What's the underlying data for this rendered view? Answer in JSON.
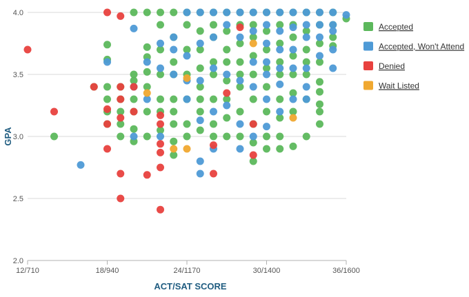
{
  "chart_data": {
    "type": "scatter",
    "xlabel": "ACT/SAT SCORE",
    "ylabel": "GPA",
    "xlim": [
      12,
      36
    ],
    "ylim": [
      2.0,
      4.0
    ],
    "x_ticks": [
      12,
      18,
      24,
      30,
      36
    ],
    "x_tick_labels": [
      "12/710",
      "18/940",
      "24/1170",
      "30/1400",
      "36/1600"
    ],
    "y_ticks": [
      2.0,
      2.5,
      3.0,
      3.5,
      4.0
    ],
    "y_tick_labels": [
      "2.0",
      "2.5",
      "3.0",
      "3.5",
      "4.0"
    ],
    "grid": "horizontal",
    "legend_position": "right",
    "series": [
      {
        "name": "Accepted",
        "color": "#5cb85c",
        "points": [
          [
            14,
            3.0
          ],
          [
            17,
            3.4
          ],
          [
            18,
            3.74
          ],
          [
            18,
            3.62
          ],
          [
            18,
            3.4
          ],
          [
            18,
            3.3
          ],
          [
            18,
            3.2
          ],
          [
            18,
            3.1
          ],
          [
            19,
            3.4
          ],
          [
            19,
            3.3
          ],
          [
            19,
            3.2
          ],
          [
            19,
            3.1
          ],
          [
            19,
            3.0
          ],
          [
            20,
            3.5
          ],
          [
            20,
            3.45
          ],
          [
            20,
            3.3
          ],
          [
            20,
            3.2
          ],
          [
            20,
            3.06
          ],
          [
            20,
            2.96
          ],
          [
            20,
            4.0
          ],
          [
            21,
            4.0
          ],
          [
            21,
            3.72
          ],
          [
            21,
            3.64
          ],
          [
            21,
            3.52
          ],
          [
            21,
            3.4
          ],
          [
            21,
            3.2
          ],
          [
            21,
            3.0
          ],
          [
            22,
            4.0
          ],
          [
            22,
            3.9
          ],
          [
            22,
            3.7
          ],
          [
            22,
            3.5
          ],
          [
            22,
            3.3
          ],
          [
            22,
            3.2
          ],
          [
            22,
            3.05
          ],
          [
            23,
            4.0
          ],
          [
            23,
            3.8
          ],
          [
            23,
            3.6
          ],
          [
            23,
            3.5
          ],
          [
            23,
            3.3
          ],
          [
            23,
            3.2
          ],
          [
            23,
            3.1
          ],
          [
            23,
            2.96
          ],
          [
            23,
            2.85
          ],
          [
            24,
            4.0
          ],
          [
            24,
            3.9
          ],
          [
            24,
            3.7
          ],
          [
            24,
            3.5
          ],
          [
            24,
            3.3
          ],
          [
            24,
            3.1
          ],
          [
            24,
            3.0
          ],
          [
            25,
            4.0
          ],
          [
            25,
            3.85
          ],
          [
            25,
            3.7
          ],
          [
            25,
            3.55
          ],
          [
            25,
            3.4
          ],
          [
            25,
            3.3
          ],
          [
            25,
            3.2
          ],
          [
            25,
            3.05
          ],
          [
            26,
            4.0
          ],
          [
            26,
            3.9
          ],
          [
            26,
            3.8
          ],
          [
            26,
            3.6
          ],
          [
            26,
            3.5
          ],
          [
            26,
            3.3
          ],
          [
            26,
            3.1
          ],
          [
            26,
            3.0
          ],
          [
            27,
            4.0
          ],
          [
            27,
            3.85
          ],
          [
            27,
            3.7
          ],
          [
            27,
            3.6
          ],
          [
            27,
            3.45
          ],
          [
            27,
            3.3
          ],
          [
            27,
            3.15
          ],
          [
            27,
            3.0
          ],
          [
            28,
            4.0
          ],
          [
            28,
            3.9
          ],
          [
            28,
            3.75
          ],
          [
            28,
            3.6
          ],
          [
            28,
            3.5
          ],
          [
            28,
            3.4
          ],
          [
            28,
            3.2
          ],
          [
            28,
            3.0
          ],
          [
            29,
            4.0
          ],
          [
            29,
            3.9
          ],
          [
            29,
            3.8
          ],
          [
            29,
            3.65
          ],
          [
            29,
            3.5
          ],
          [
            29,
            3.3
          ],
          [
            29,
            3.1
          ],
          [
            29,
            2.95
          ],
          [
            29,
            2.8
          ],
          [
            30,
            4.0
          ],
          [
            30,
            3.85
          ],
          [
            30,
            3.7
          ],
          [
            30,
            3.55
          ],
          [
            30,
            3.4
          ],
          [
            30,
            3.2
          ],
          [
            30,
            3.0
          ],
          [
            30,
            2.9
          ],
          [
            31,
            4.0
          ],
          [
            31,
            3.9
          ],
          [
            31,
            3.75
          ],
          [
            31,
            3.6
          ],
          [
            31,
            3.5
          ],
          [
            31,
            3.3
          ],
          [
            31,
            3.15
          ],
          [
            31,
            3.0
          ],
          [
            31,
            2.9
          ],
          [
            32,
            4.0
          ],
          [
            32,
            3.9
          ],
          [
            32,
            3.8
          ],
          [
            32,
            3.65
          ],
          [
            32,
            3.5
          ],
          [
            32,
            3.35
          ],
          [
            32,
            3.2
          ],
          [
            32,
            2.92
          ],
          [
            33,
            4.0
          ],
          [
            33,
            3.85
          ],
          [
            33,
            3.7
          ],
          [
            33,
            3.6
          ],
          [
            33,
            3.5
          ],
          [
            33,
            3.3
          ],
          [
            33,
            3.0
          ],
          [
            34,
            4.0
          ],
          [
            34,
            3.9
          ],
          [
            34,
            3.75
          ],
          [
            34,
            3.6
          ],
          [
            34,
            3.44
          ],
          [
            34,
            3.36
          ],
          [
            34,
            3.26
          ],
          [
            34,
            3.2
          ],
          [
            34,
            3.1
          ],
          [
            35,
            4.0
          ],
          [
            35,
            3.9
          ],
          [
            35,
            3.8
          ],
          [
            35,
            3.73
          ],
          [
            36,
            3.95
          ]
        ]
      },
      {
        "name": "Accepted, Won't Attend",
        "color": "#4e9ad6",
        "points": [
          [
            16,
            2.77
          ],
          [
            18,
            3.6
          ],
          [
            20,
            3.87
          ],
          [
            20,
            3.4
          ],
          [
            20,
            3.0
          ],
          [
            21,
            3.6
          ],
          [
            21,
            3.3
          ],
          [
            22,
            3.75
          ],
          [
            22,
            3.55
          ],
          [
            22,
            3.0
          ],
          [
            23,
            3.8
          ],
          [
            23,
            3.7
          ],
          [
            23,
            3.5
          ],
          [
            24,
            4.0
          ],
          [
            24,
            3.65
          ],
          [
            24,
            3.45
          ],
          [
            24,
            3.3
          ],
          [
            25,
            4.0
          ],
          [
            25,
            3.75
          ],
          [
            25,
            3.45
          ],
          [
            25,
            3.13
          ],
          [
            25,
            2.8
          ],
          [
            25,
            2.7
          ],
          [
            26,
            4.0
          ],
          [
            26,
            3.8
          ],
          [
            26,
            3.55
          ],
          [
            26,
            3.2
          ],
          [
            26,
            2.9
          ],
          [
            27,
            4.0
          ],
          [
            27,
            3.9
          ],
          [
            27,
            3.5
          ],
          [
            27,
            3.25
          ],
          [
            28,
            4.0
          ],
          [
            28,
            3.8
          ],
          [
            28,
            3.45
          ],
          [
            28,
            3.1
          ],
          [
            28,
            2.9
          ],
          [
            29,
            4.0
          ],
          [
            29,
            3.85
          ],
          [
            29,
            3.6
          ],
          [
            29,
            3.4
          ],
          [
            29,
            3.0
          ],
          [
            30,
            4.0
          ],
          [
            30,
            3.9
          ],
          [
            30,
            3.75
          ],
          [
            30,
            3.6
          ],
          [
            30,
            3.5
          ],
          [
            30,
            3.3
          ],
          [
            30,
            3.08
          ],
          [
            31,
            4.0
          ],
          [
            31,
            3.85
          ],
          [
            31,
            3.7
          ],
          [
            31,
            3.55
          ],
          [
            31,
            3.42
          ],
          [
            31,
            3.2
          ],
          [
            32,
            4.0
          ],
          [
            32,
            3.88
          ],
          [
            32,
            3.7
          ],
          [
            32,
            3.55
          ],
          [
            32,
            3.3
          ],
          [
            33,
            4.0
          ],
          [
            33,
            3.9
          ],
          [
            33,
            3.8
          ],
          [
            33,
            3.55
          ],
          [
            33,
            3.4
          ],
          [
            33,
            3.3
          ],
          [
            34,
            4.0
          ],
          [
            34,
            3.9
          ],
          [
            34,
            3.8
          ],
          [
            34,
            3.65
          ],
          [
            35,
            4.0
          ],
          [
            35,
            3.9
          ],
          [
            35,
            3.85
          ],
          [
            35,
            3.7
          ],
          [
            35,
            3.55
          ],
          [
            36,
            3.98
          ]
        ]
      },
      {
        "name": "Denied",
        "color": "#e8413e",
        "points": [
          [
            12,
            3.7
          ],
          [
            14,
            3.2
          ],
          [
            17,
            3.4
          ],
          [
            18,
            4.0
          ],
          [
            18,
            3.22
          ],
          [
            18,
            3.1
          ],
          [
            18,
            2.9
          ],
          [
            19,
            3.97
          ],
          [
            19,
            3.4
          ],
          [
            19,
            3.3
          ],
          [
            19,
            3.15
          ],
          [
            19,
            2.7
          ],
          [
            19,
            2.5
          ],
          [
            20,
            3.4
          ],
          [
            20,
            3.2
          ],
          [
            21,
            2.69
          ],
          [
            22,
            2.41
          ],
          [
            22,
            3.17
          ],
          [
            22,
            3.1
          ],
          [
            22,
            2.94
          ],
          [
            22,
            2.87
          ],
          [
            22,
            2.75
          ],
          [
            26,
            2.93
          ],
          [
            26,
            2.7
          ],
          [
            27,
            3.35
          ],
          [
            28,
            3.88
          ],
          [
            29,
            3.1
          ],
          [
            29,
            2.85
          ]
        ]
      },
      {
        "name": "Wait Listed",
        "color": "#f0a830",
        "points": [
          [
            21,
            3.35
          ],
          [
            23,
            2.9
          ],
          [
            24,
            3.47
          ],
          [
            24,
            2.9
          ],
          [
            29,
            3.75
          ],
          [
            32,
            3.15
          ]
        ]
      }
    ]
  }
}
